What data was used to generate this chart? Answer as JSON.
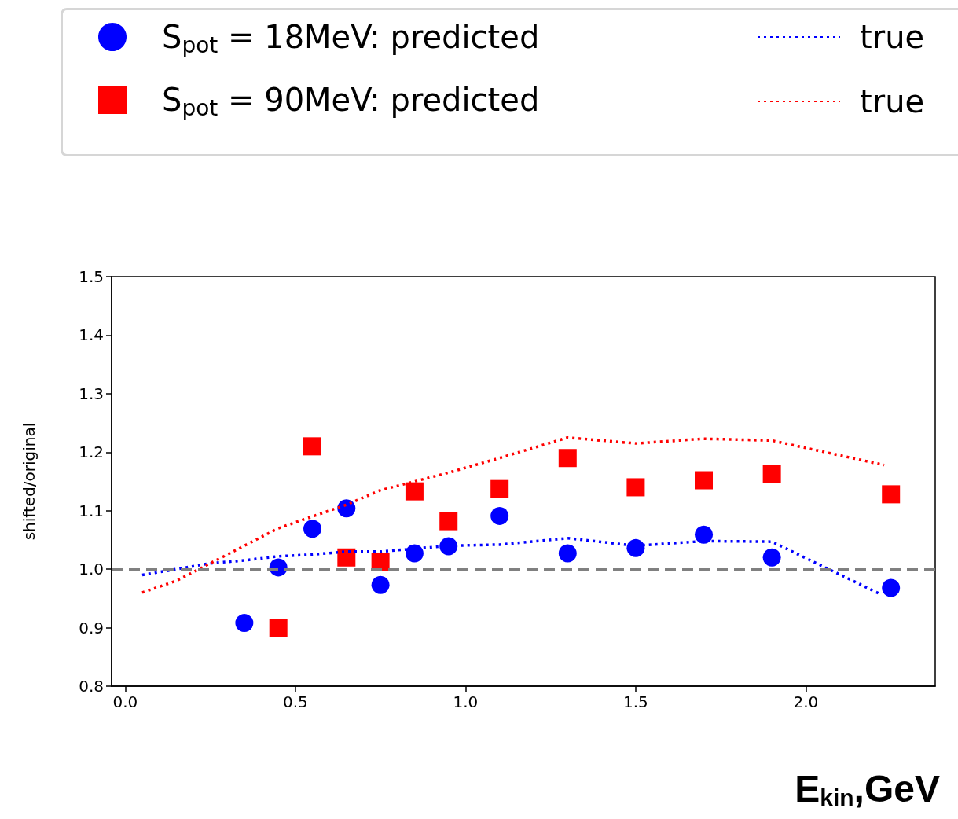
{
  "chart_data": {
    "type": "scatter",
    "xlabel": "E$_{kin}$,GeV",
    "ylabel": "shifted/original",
    "xlim": [
      -0.04,
      2.38
    ],
    "xticks": [
      {
        "value": 0,
        "label": "0.0"
      },
      0.5,
      {
        "value": 1,
        "label": "1.0"
      },
      1.5,
      {
        "value": 2,
        "label": "2.0"
      }
    ],
    "ylim": [
      0.8,
      1.5
    ],
    "yticks": [
      0.8,
      0.9,
      {
        "value": 1,
        "label": "1.0"
      },
      1.1,
      1.2,
      1.3,
      1.4,
      1.5
    ],
    "grid": false,
    "legend": "top",
    "ref_lines": [
      {
        "axis": "y",
        "value": 1.0,
        "label": null,
        "color": "#808080",
        "line_style": "dashed"
      }
    ],
    "series": [
      {
        "name": "S$_{pot}$ = 18MeV: predicted",
        "marker": "circle",
        "color": "#0000ff",
        "x": [
          0.35,
          0.45,
          0.55,
          0.65,
          0.75,
          0.85,
          0.95,
          1.1,
          1.3,
          1.5,
          1.7,
          1.9,
          2.25
        ],
        "values": [
          0.908,
          1.003,
          1.069,
          1.104,
          0.973,
          1.027,
          1.039,
          1.091,
          1.027,
          1.036,
          1.059,
          1.02,
          0.968
        ]
      },
      {
        "name": "S$_{pot}$ = 90MeV: predicted",
        "marker": "square",
        "color": "#ff0000",
        "x": [
          0.45,
          0.55,
          0.65,
          0.75,
          0.85,
          0.95,
          1.1,
          1.3,
          1.5,
          1.7,
          1.9,
          2.25
        ],
        "values": [
          0.899,
          1.21,
          1.02,
          1.013,
          1.133,
          1.082,
          1.137,
          1.19,
          1.14,
          1.152,
          1.163,
          1.128
        ]
      },
      {
        "name": "true",
        "type": "line",
        "marker": "none",
        "line_style": "dotted",
        "color": "#0000ff",
        "x": [
          0.05,
          0.15,
          0.25,
          0.35,
          0.45,
          0.55,
          0.65,
          0.75,
          0.85,
          0.95,
          1.1,
          1.3,
          1.5,
          1.7,
          1.9,
          2.22
        ],
        "values": [
          0.99,
          1.0,
          1.01,
          1.015,
          1.022,
          1.025,
          1.03,
          1.03,
          1.035,
          1.04,
          1.042,
          1.053,
          1.04,
          1.048,
          1.047,
          0.957
        ]
      },
      {
        "name": "true",
        "type": "line",
        "marker": "none",
        "line_style": "dotted",
        "color": "#ff0000",
        "x": [
          0.05,
          0.15,
          0.25,
          0.35,
          0.45,
          0.55,
          0.65,
          0.75,
          0.85,
          0.95,
          1.1,
          1.3,
          1.5,
          1.7,
          1.9,
          2.23
        ],
        "values": [
          0.96,
          0.98,
          1.01,
          1.04,
          1.07,
          1.09,
          1.11,
          1.135,
          1.15,
          1.165,
          1.19,
          1.225,
          1.215,
          1.223,
          1.22,
          1.178
        ]
      }
    ]
  }
}
